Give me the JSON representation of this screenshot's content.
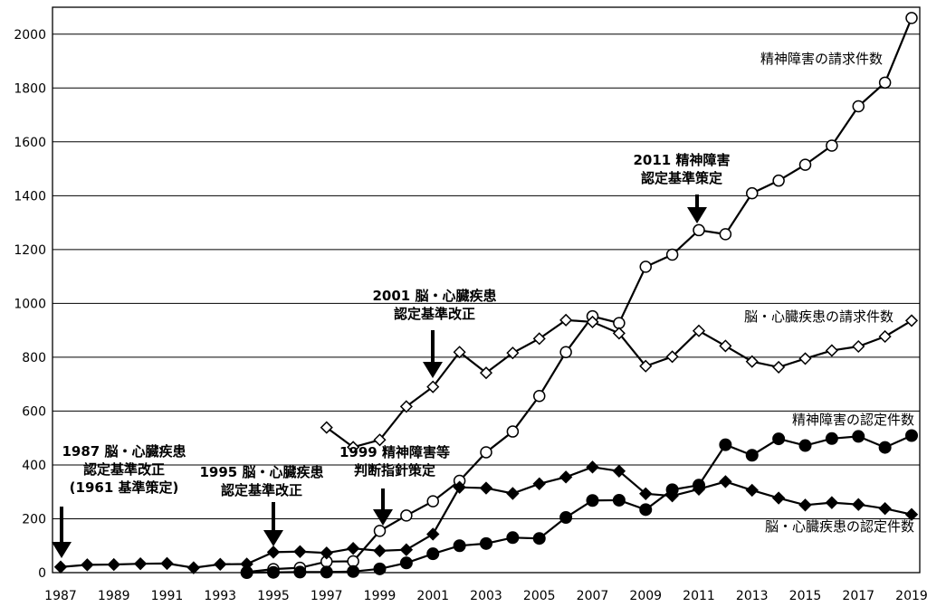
{
  "chart_data": {
    "type": "line",
    "x": [
      1987,
      1988,
      1989,
      1990,
      1991,
      1992,
      1993,
      1994,
      1995,
      1996,
      1997,
      1998,
      1999,
      2000,
      2001,
      2002,
      2003,
      2004,
      2005,
      2006,
      2007,
      2008,
      2009,
      2010,
      2011,
      2012,
      2013,
      2014,
      2015,
      2016,
      2017,
      2018,
      2019
    ],
    "xticks": [
      "1987",
      "1989",
      "1991",
      "1993",
      "1995",
      "1997",
      "1999",
      "2001",
      "2003",
      "2005",
      "2007",
      "2009",
      "2011",
      "2013",
      "2015",
      "2017",
      "2019"
    ],
    "yticks": [
      "0",
      "200",
      "400",
      "600",
      "800",
      "1000",
      "1200",
      "1400",
      "1600",
      "1800",
      "2000"
    ],
    "ylim": [
      0,
      2100
    ],
    "grid": "horizontal",
    "series": [
      {
        "name": "精神障害の請求件数",
        "marker": "open-circle",
        "values": [
          null,
          null,
          null,
          null,
          null,
          null,
          null,
          2,
          13,
          18,
          41,
          42,
          155,
          212,
          265,
          341,
          447,
          524,
          656,
          819,
          952,
          927,
          1136,
          1181,
          1272,
          1257,
          1409,
          1456,
          1515,
          1586,
          1732,
          1820,
          2060
        ]
      },
      {
        "name": "脳・心臓疾患の請求件数",
        "marker": "open-diamond",
        "values": [
          null,
          null,
          null,
          null,
          null,
          null,
          null,
          null,
          null,
          null,
          539,
          466,
          493,
          617,
          690,
          819,
          742,
          816,
          869,
          938,
          931,
          889,
          767,
          802,
          898,
          842,
          784,
          763,
          795,
          825,
          840,
          877,
          936
        ]
      },
      {
        "name": "精神障害の認定件数",
        "marker": "filled-circle",
        "values": [
          null,
          null,
          null,
          null,
          null,
          null,
          null,
          0,
          1,
          2,
          2,
          4,
          14,
          36,
          70,
          100,
          108,
          130,
          127,
          205,
          268,
          269,
          234,
          308,
          325,
          475,
          436,
          497,
          472,
          498,
          506,
          465,
          509
        ]
      },
      {
        "name": "脳・心臓疾患の認定件数",
        "marker": "filled-diamond",
        "values": [
          21,
          29,
          30,
          33,
          34,
          18,
          31,
          32,
          76,
          78,
          73,
          90,
          81,
          85,
          143,
          317,
          314,
          294,
          330,
          355,
          392,
          377,
          293,
          285,
          310,
          338,
          306,
          277,
          251,
          260,
          253,
          238,
          216
        ]
      }
    ],
    "annotations": [
      {
        "lines": [
          "2011 精神障害",
          "認定基準策定"
        ],
        "year": 2011
      },
      {
        "lines": [
          "2001 脳・心臓疾患",
          "認定基準改正"
        ],
        "year": 2001
      },
      {
        "lines": [
          "1999 精神障害等",
          "判断指針策定"
        ],
        "year": 1999
      },
      {
        "lines": [
          "1995 脳・心臓疾患",
          "認定基準改正"
        ],
        "year": 1995
      },
      {
        "lines": [
          "1987 脳・心臓疾患",
          "認定基準改正",
          "(1961 基準策定)"
        ],
        "year": 1987
      }
    ]
  }
}
